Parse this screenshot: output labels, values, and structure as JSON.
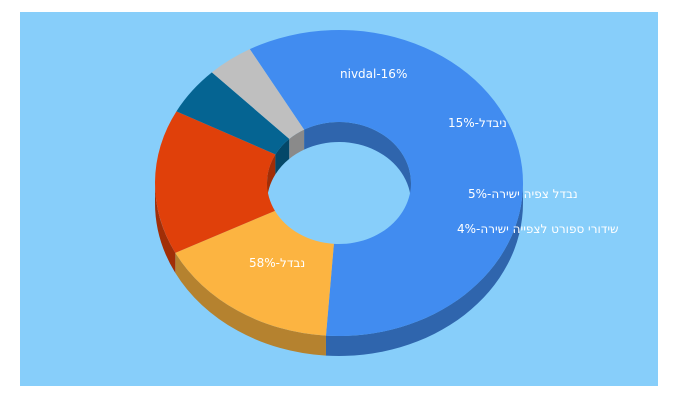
{
  "chart_data": {
    "type": "pie",
    "style": "3d-donut",
    "title": "",
    "background_color": "#87CEFA",
    "categories": [
      "נבדל",
      "nivdal",
      "ניבדל",
      "נבדל צפיה ישירה",
      "שידורי ספורט לצפייה ישירה"
    ],
    "values": [
      58,
      16,
      15,
      5,
      4
    ],
    "unit": "%",
    "labels": [
      "58%-נבדל",
      "nivdal-16%",
      "15%-ניבדל",
      "5%-נבדל צפיה ישירה",
      "4%-שידורי ספורט לצפייה ישירה"
    ],
    "colors": [
      "#418CF0",
      "#FCB441",
      "#E0400A",
      "#056492",
      "#BFBFBF"
    ],
    "legend": "none"
  }
}
